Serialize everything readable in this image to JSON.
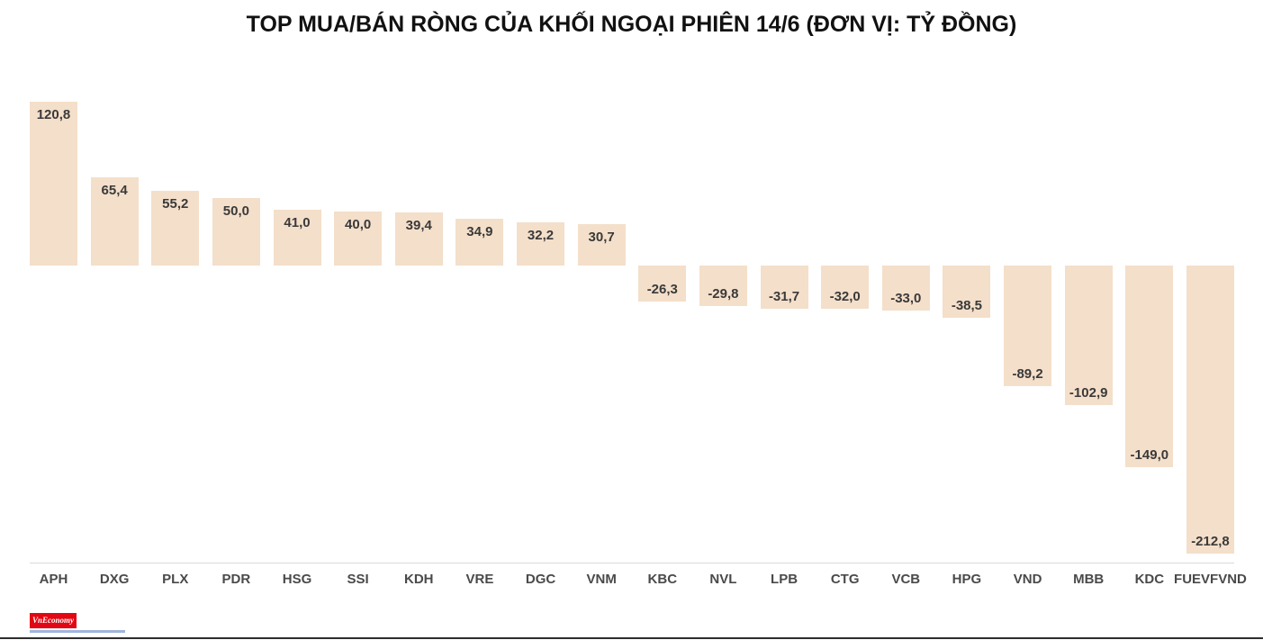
{
  "title": "TOP MUA/BÁN RÒNG CỦA KHỐI NGOẠI PHIÊN 14/6 (ĐƠN VỊ: TỶ ĐỒNG)",
  "chart_data": {
    "type": "bar",
    "title": "TOP MUA/BÁN RÒNG CỦA KHỐI NGOẠI PHIÊN 14/6 (ĐƠN VỊ: TỶ ĐỒNG)",
    "categories": [
      "APH",
      "DXG",
      "PLX",
      "PDR",
      "HSG",
      "SSI",
      "KDH",
      "VRE",
      "DGC",
      "VNM",
      "KBC",
      "NVL",
      "LPB",
      "CTG",
      "VCB",
      "HPG",
      "VND",
      "MBB",
      "KDC",
      "FUEVFVND"
    ],
    "values": [
      120.8,
      65.4,
      55.2,
      50.0,
      41.0,
      40.0,
      39.4,
      34.9,
      32.2,
      30.7,
      -26.3,
      -29.8,
      -31.7,
      -32.0,
      -33.0,
      -38.5,
      -89.2,
      -102.9,
      -149.0,
      -212.8
    ],
    "value_labels": [
      "120,8",
      "65,4",
      "55,2",
      "50,0",
      "41,0",
      "40,0",
      "39,4",
      "34,9",
      "32,2",
      "30,7",
      "-26,3",
      "-29,8",
      "-31,7",
      "-32,0",
      "-33,0",
      "-38,5",
      "-89,2",
      "-102,9",
      "-149,0",
      "-212,8"
    ],
    "xlabel": "",
    "ylabel": "",
    "unit": "TỶ ĐỒNG",
    "baseline": 0,
    "grid": false,
    "legend": "none",
    "bar_color": "#f4dfca",
    "value_label_color": "#3a3a3a",
    "category_label_color": "#4a4a4a"
  },
  "footer": {
    "logo_text": "VnEconomy",
    "logo_bg": "#e30613"
  }
}
